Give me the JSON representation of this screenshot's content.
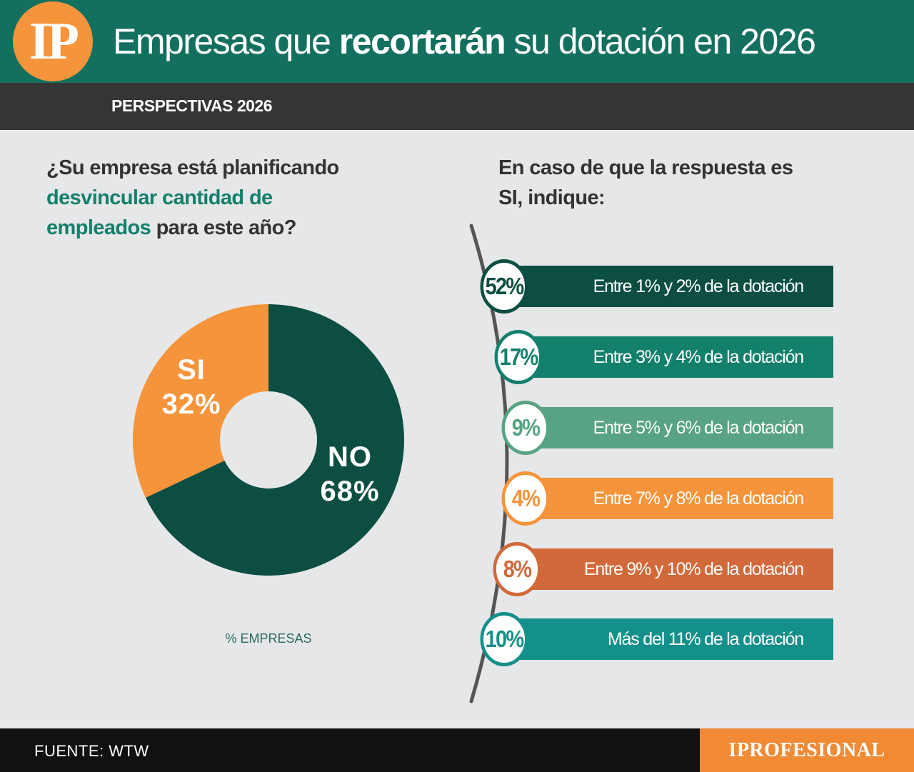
{
  "header": {
    "logo_text": "IP",
    "title_before": "Empresas que ",
    "title_bold": "recortarán",
    "title_after": " su dotación en 2026",
    "subtitle": "PERSPECTIVAS 2026"
  },
  "left": {
    "q_part1": "¿Su empresa está planificando ",
    "q_highlight": "desvincular cantidad de empleados",
    "q_part2": " para este año?",
    "unit_note": "% EMPRESAS"
  },
  "right": {
    "question": "En caso de que la respuesta es SI, indique:"
  },
  "chart_data": [
    {
      "type": "pie",
      "categories": [
        "SI",
        "NO"
      ],
      "values": [
        32,
        68
      ],
      "labels": [
        {
          "name": "SI",
          "pct": "32%"
        },
        {
          "name": "NO",
          "pct": "68%"
        }
      ],
      "colors": [
        "#f5943b",
        "#0c4e42"
      ]
    },
    {
      "type": "bar",
      "categories": [
        "Entre 1% y 2% de la dotación",
        "Entre 3% y 4% de la dotación",
        "Entre 5% y 6% de la dotación",
        "Entre 7% y 8% de la dotación",
        "Entre 9% y 10% de la dotación",
        "Más del 11% de la dotación"
      ],
      "values": [
        52,
        17,
        9,
        4,
        8,
        10
      ],
      "value_labels": [
        "52%",
        "17%",
        "9%",
        "4%",
        "8%",
        "10%"
      ],
      "colors": [
        "#0c4e42",
        "#13806b",
        "#57a383",
        "#f5943b",
        "#d2693a",
        "#13908a"
      ]
    }
  ],
  "footer": {
    "source": "FUENTE: WTW",
    "brand": "IPROFESIONAL"
  }
}
